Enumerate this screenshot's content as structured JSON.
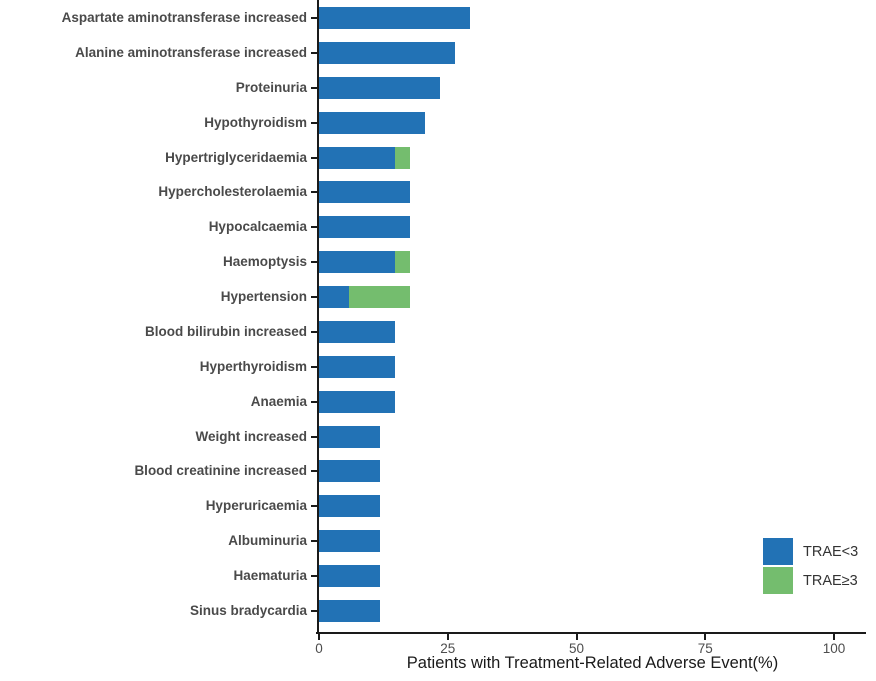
{
  "chart_data": {
    "type": "bar",
    "orientation": "horizontal",
    "stacked": true,
    "title": "",
    "xlabel": "Patients with Treatment-Related Adverse Event(%)",
    "ylabel": "",
    "x_ticks": [
      0,
      25,
      50,
      75,
      100
    ],
    "xlim": [
      0,
      106
    ],
    "grid": false,
    "legend_position": "right-bottom",
    "categories": [
      "Aspartate aminotransferase increased",
      "Alanine aminotransferase increased",
      "Proteinuria",
      "Hypothyroidism",
      "Hypertriglyceridaemia",
      "Hypercholesterolaemia",
      "Hypocalcaemia",
      "Haemoptysis",
      "Hypertension",
      "Blood bilirubin increased",
      "Hyperthyroidism",
      "Anaemia",
      "Weight increased",
      "Blood creatinine increased",
      "Hyperuricaemia",
      "Albuminuria",
      "Haematuria",
      "Sinus bradycardia"
    ],
    "series": [
      {
        "name": "TRAE<3",
        "color": "#2272B5",
        "values": [
          29.4,
          26.5,
          23.5,
          20.6,
          14.7,
          17.6,
          17.6,
          14.7,
          5.9,
          14.7,
          14.7,
          14.7,
          11.8,
          11.8,
          11.8,
          11.8,
          11.8,
          11.8
        ]
      },
      {
        "name": "TRAE≥3",
        "color": "#74BD6E",
        "values": [
          0,
          0,
          0,
          0,
          2.9,
          0,
          0,
          2.9,
          11.8,
          0,
          0,
          0,
          0,
          0,
          0,
          0,
          0,
          0
        ]
      }
    ],
    "axis_color": "#1A1A1A",
    "category_label_color": "#4A4A4A",
    "tick_label_color": "#4D4D4D"
  }
}
